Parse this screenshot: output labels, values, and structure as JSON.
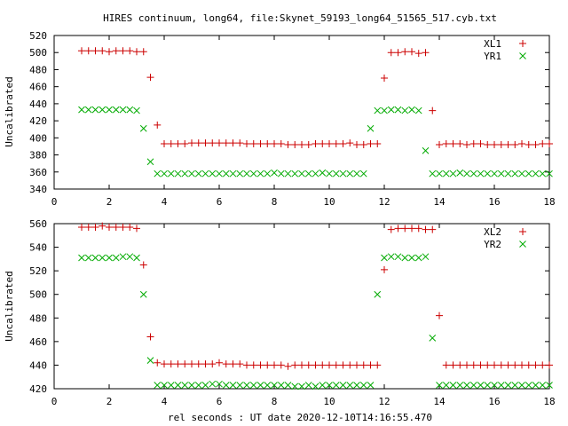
{
  "title": "HIRES continuum, long64, file:Skynet_59193_long64_51565_517.cyb.txt",
  "xlabel": "rel seconds : UT date 2020-12-10T14:16:55.470",
  "colors": {
    "red": "#cc0000",
    "green": "#00aa00",
    "axis": "#000000"
  },
  "chart_data": [
    {
      "type": "scatter",
      "ylabel": "Uncalibrated",
      "xlim": [
        0,
        18
      ],
      "ylim": [
        340,
        520
      ],
      "xticks": [
        0,
        2,
        4,
        6,
        8,
        10,
        12,
        14,
        16,
        18
      ],
      "yticks": [
        340,
        360,
        380,
        400,
        420,
        440,
        460,
        480,
        500,
        520
      ],
      "legend_position": "top-right",
      "grid": false,
      "series": [
        {
          "name": "XL1",
          "marker": "plus",
          "color": "#cc0000",
          "x": [
            1.0,
            1.25,
            1.5,
            1.75,
            2.0,
            2.25,
            2.5,
            2.75,
            3.0,
            3.25,
            3.5,
            3.75,
            4.0,
            4.25,
            4.5,
            4.75,
            5.0,
            5.25,
            5.5,
            5.75,
            6.0,
            6.25,
            6.5,
            6.75,
            7.0,
            7.25,
            7.5,
            7.75,
            8.0,
            8.25,
            8.5,
            8.75,
            9.0,
            9.25,
            9.5,
            9.75,
            10.0,
            10.25,
            10.5,
            10.75,
            11.0,
            11.25,
            11.5,
            11.75,
            12.0,
            12.25,
            12.5,
            12.75,
            13.0,
            13.25,
            13.5,
            13.75,
            14.0,
            14.25,
            14.5,
            14.75,
            15.0,
            15.25,
            15.5,
            15.75,
            16.0,
            16.25,
            16.5,
            16.75,
            17.0,
            17.25,
            17.5,
            17.75,
            18.0
          ],
          "y": [
            502,
            502,
            502,
            502,
            501,
            502,
            502,
            502,
            501,
            501,
            471,
            415,
            393,
            393,
            393,
            393,
            394,
            394,
            394,
            394,
            394,
            394,
            394,
            394,
            393,
            393,
            393,
            393,
            393,
            393,
            392,
            392,
            392,
            392,
            393,
            393,
            393,
            393,
            393,
            394,
            392,
            392,
            393,
            393,
            470,
            500,
            500,
            501,
            501,
            499,
            500,
            432,
            392,
            393,
            393,
            393,
            392,
            393,
            393,
            392,
            392,
            392,
            392,
            392,
            393,
            392,
            392,
            393,
            393
          ],
          "start_index": 0
        },
        {
          "name": "YR1",
          "marker": "x",
          "color": "#00aa00",
          "x": [
            1.0,
            1.25,
            1.5,
            1.75,
            2.0,
            2.25,
            2.5,
            2.75,
            3.0,
            3.25,
            3.5,
            3.75,
            4.0,
            4.25,
            4.5,
            4.75,
            5.0,
            5.25,
            5.5,
            5.75,
            6.0,
            6.25,
            6.5,
            6.75,
            7.0,
            7.25,
            7.5,
            7.75,
            8.0,
            8.25,
            8.5,
            8.75,
            9.0,
            9.25,
            9.5,
            9.75,
            10.0,
            10.25,
            10.5,
            10.75,
            11.0,
            11.25,
            11.5,
            11.75,
            12.0,
            12.25,
            12.5,
            12.75,
            13.0,
            13.25,
            13.5,
            13.75,
            14.0,
            14.25,
            14.5,
            14.75,
            15.0,
            15.25,
            15.5,
            15.75,
            16.0,
            16.25,
            16.5,
            16.75,
            17.0,
            17.25,
            17.5,
            17.75,
            18.0
          ],
          "y": [
            433,
            433,
            433,
            433,
            433,
            433,
            433,
            433,
            432,
            411,
            372,
            358,
            358,
            358,
            358,
            358,
            358,
            358,
            358,
            358,
            358,
            358,
            358,
            358,
            358,
            358,
            358,
            358,
            359,
            358,
            358,
            358,
            358,
            358,
            358,
            359,
            358,
            358,
            358,
            358,
            358,
            358,
            411,
            432,
            432,
            433,
            433,
            432,
            433,
            432,
            385,
            358,
            358,
            358,
            358,
            359,
            358,
            358,
            358,
            358,
            358,
            358,
            358,
            358,
            358,
            358,
            358,
            358,
            358
          ],
          "start_index": 0
        }
      ]
    },
    {
      "type": "scatter",
      "ylabel": "Uncalibrated",
      "xlim": [
        0,
        18
      ],
      "ylim": [
        420,
        560
      ],
      "xticks": [
        0,
        2,
        4,
        6,
        8,
        10,
        12,
        14,
        16,
        18
      ],
      "yticks": [
        420,
        440,
        460,
        480,
        500,
        520,
        540,
        560
      ],
      "legend_position": "top-right",
      "grid": false,
      "series": [
        {
          "name": "XL2",
          "marker": "plus",
          "color": "#cc0000",
          "x": [
            1.0,
            1.25,
            1.5,
            1.75,
            2.0,
            2.25,
            2.5,
            2.75,
            3.0,
            3.25,
            3.5,
            3.75,
            4.0,
            4.25,
            4.5,
            4.75,
            5.0,
            5.25,
            5.5,
            5.75,
            6.0,
            6.25,
            6.5,
            6.75,
            7.0,
            7.25,
            7.5,
            7.75,
            8.0,
            8.25,
            8.5,
            8.75,
            9.0,
            9.25,
            9.5,
            9.75,
            10.0,
            10.25,
            10.5,
            10.75,
            11.0,
            11.25,
            11.5,
            11.75,
            12.0,
            12.25,
            12.5,
            12.75,
            13.0,
            13.25,
            13.5,
            13.75,
            14.0,
            14.25,
            14.5,
            14.75,
            15.0,
            15.25,
            15.5,
            15.75,
            16.0,
            16.25,
            16.5,
            16.75,
            17.0,
            17.25,
            17.5,
            17.75,
            18.0
          ],
          "y": [
            557,
            557,
            557,
            558,
            557,
            557,
            557,
            557,
            556,
            525,
            464,
            442,
            441,
            441,
            441,
            441,
            441,
            441,
            441,
            441,
            442,
            441,
            441,
            441,
            440,
            440,
            440,
            440,
            440,
            440,
            439,
            440,
            440,
            440,
            440,
            440,
            440,
            440,
            440,
            440,
            440,
            440,
            440,
            440,
            521,
            555,
            556,
            556,
            556,
            556,
            555,
            555,
            482,
            440,
            440,
            440,
            440,
            440,
            440,
            440,
            440,
            440,
            440,
            440,
            440,
            440,
            440,
            440,
            440
          ],
          "start_index": 0
        },
        {
          "name": "YR2",
          "marker": "x",
          "color": "#00aa00",
          "x": [
            1.0,
            1.25,
            1.5,
            1.75,
            2.0,
            2.25,
            2.5,
            2.75,
            3.0,
            3.25,
            3.5,
            3.75,
            4.0,
            4.25,
            4.5,
            4.75,
            5.0,
            5.25,
            5.5,
            5.75,
            6.0,
            6.25,
            6.5,
            6.75,
            7.0,
            7.25,
            7.5,
            7.75,
            8.0,
            8.25,
            8.5,
            8.75,
            9.0,
            9.25,
            9.5,
            9.75,
            10.0,
            10.25,
            10.5,
            10.75,
            11.0,
            11.25,
            11.5,
            11.75,
            12.0,
            12.25,
            12.5,
            12.75,
            13.0,
            13.25,
            13.5,
            13.75,
            14.0,
            14.25,
            14.5,
            14.75,
            15.0,
            15.25,
            15.5,
            15.75,
            16.0,
            16.25,
            16.5,
            16.75,
            17.0,
            17.25,
            17.5,
            17.75,
            18.0
          ],
          "y": [
            531,
            531,
            531,
            531,
            531,
            531,
            532,
            532,
            531,
            500,
            444,
            423,
            423,
            423,
            423,
            423,
            423,
            423,
            423,
            424,
            424,
            423,
            423,
            423,
            423,
            423,
            423,
            423,
            423,
            423,
            423,
            422,
            422,
            423,
            422,
            423,
            423,
            423,
            423,
            423,
            423,
            423,
            423,
            500,
            531,
            532,
            532,
            531,
            531,
            531,
            532,
            463,
            423,
            423,
            423,
            423,
            423,
            423,
            423,
            423,
            423,
            423,
            423,
            423,
            423,
            423,
            423,
            423,
            423
          ],
          "start_index": 0
        }
      ]
    }
  ]
}
